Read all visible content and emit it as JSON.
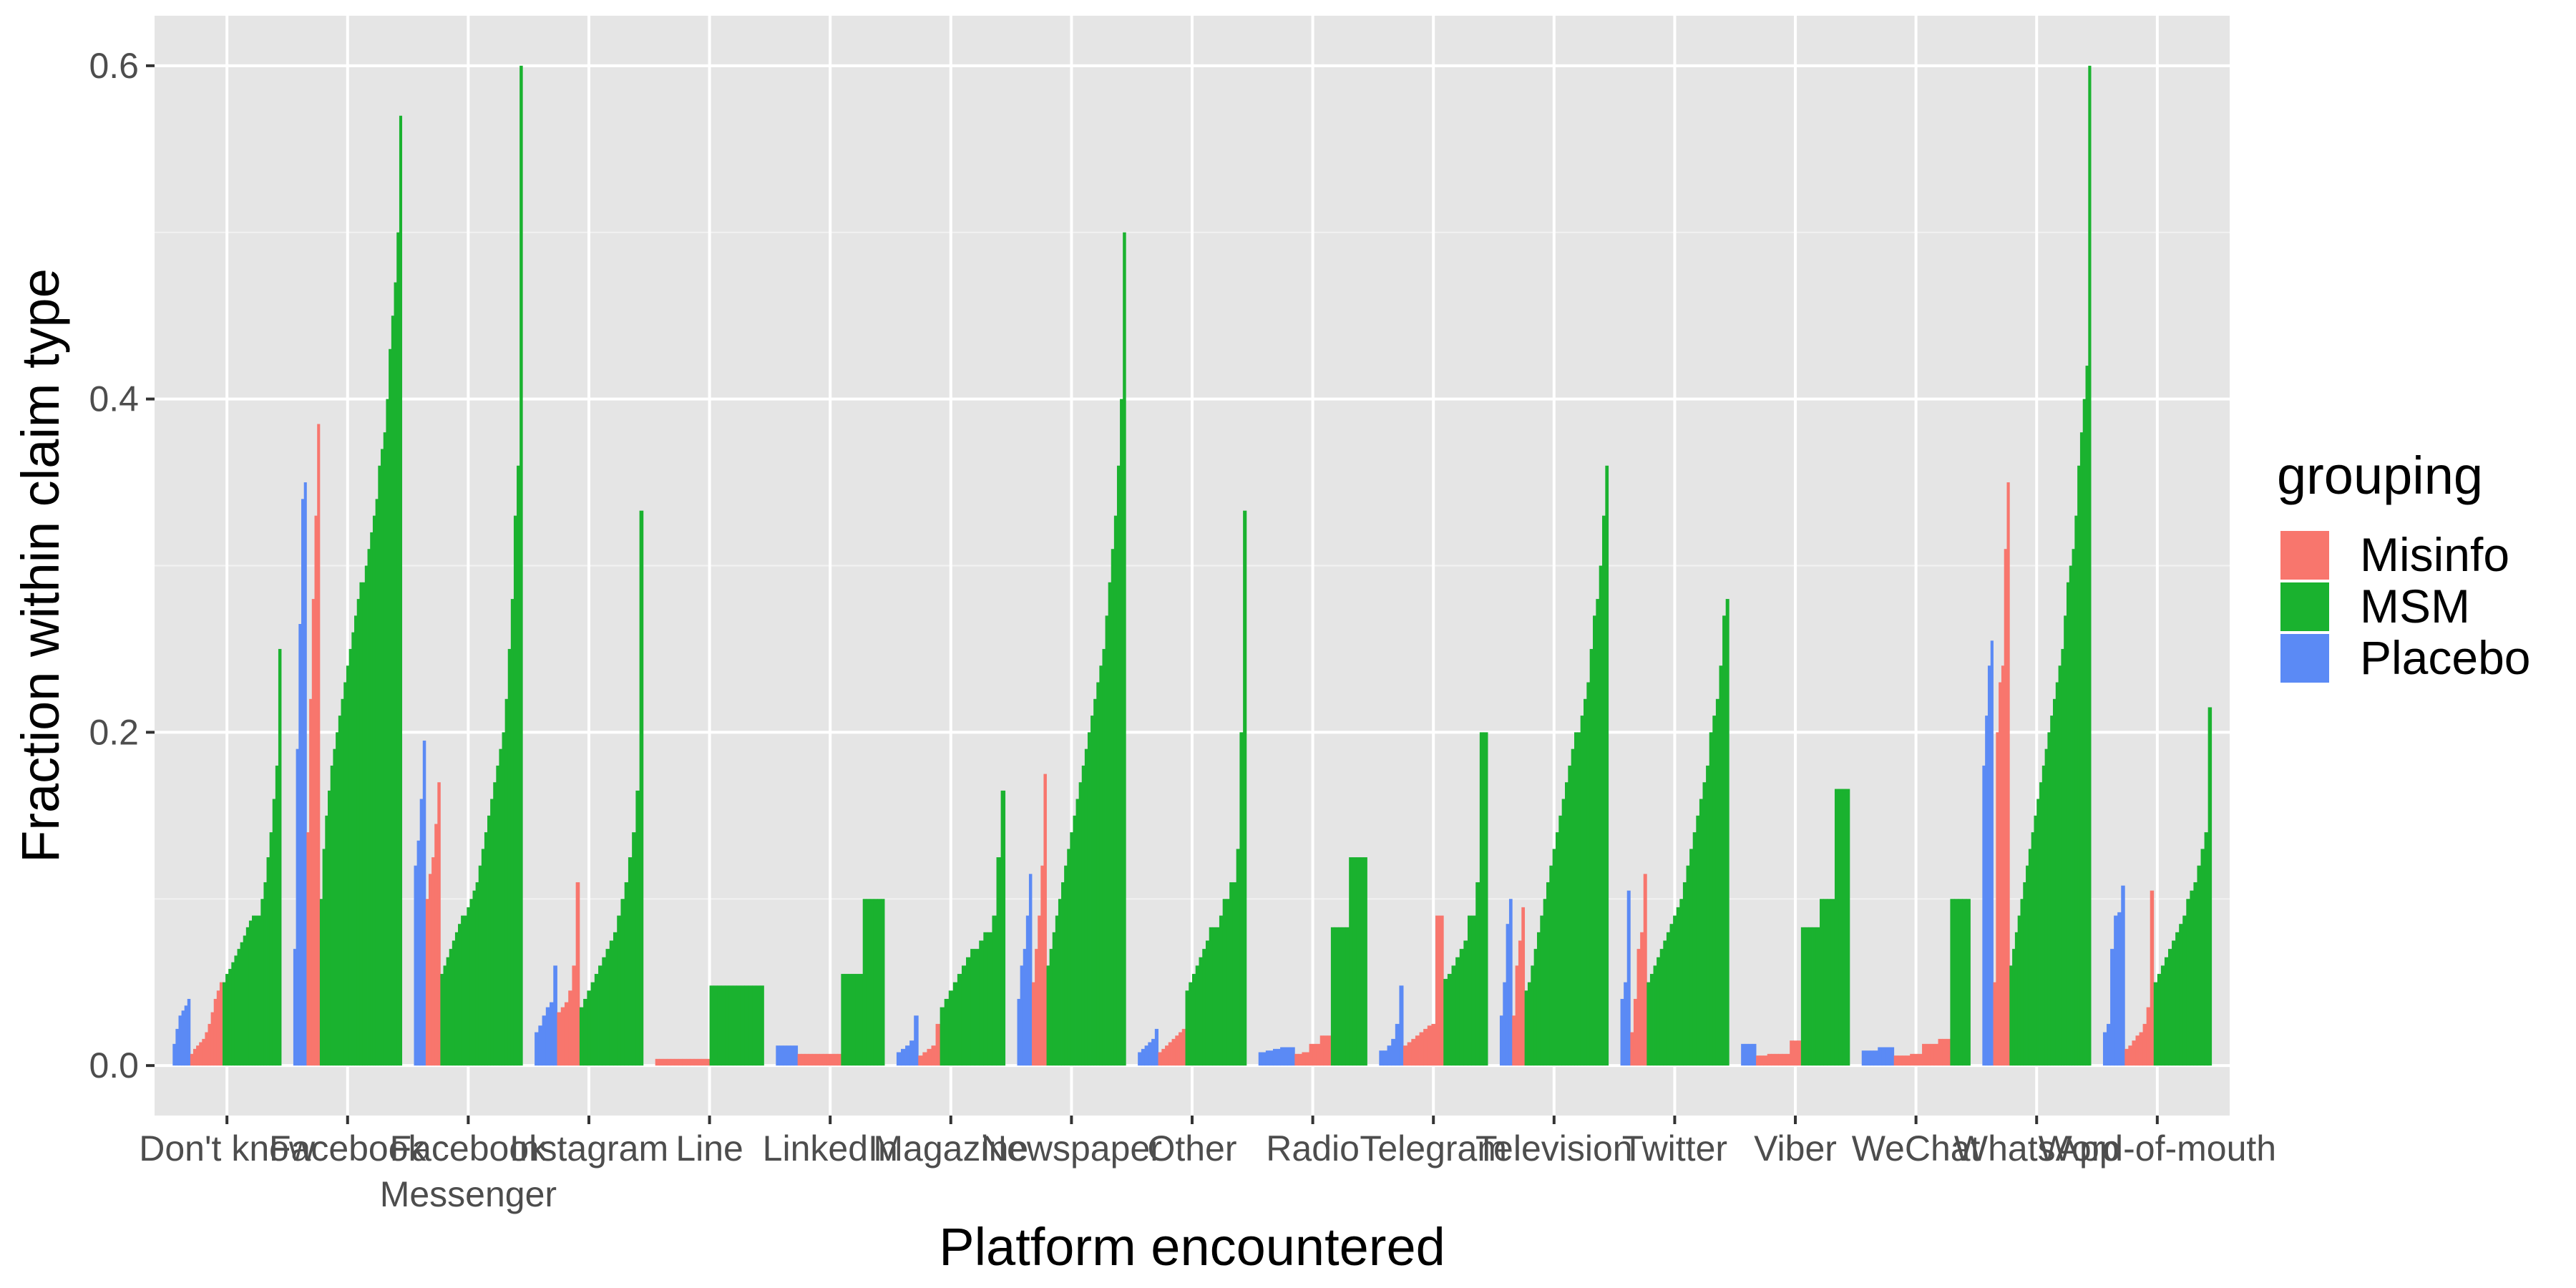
{
  "chart_data": {
    "type": "bar",
    "xlabel": "Platform encountered",
    "ylabel": "Fraction within claim type",
    "ylim": [
      -0.03,
      0.63
    ],
    "yticks": [
      0.0,
      0.2,
      0.4,
      0.6
    ],
    "ytick_labels": [
      "0.0",
      "0.2",
      "0.4",
      "0.6"
    ],
    "grid": true,
    "legend": {
      "title": "grouping",
      "placement": "right",
      "items": [
        {
          "name": "Misinfo",
          "color": "#F8766D"
        },
        {
          "name": "MSM",
          "color": "#1AB22F"
        },
        {
          "name": "Placebo",
          "color": "#5B8AF5"
        }
      ]
    },
    "categories": [
      {
        "label": [
          "Don't know"
        ],
        "groups": [
          {
            "name": "Placebo",
            "values": [
              0.013,
              0.022,
              0.03,
              0.033,
              0.036,
              0.04
            ]
          },
          {
            "name": "Misinfo",
            "values": [
              0.007,
              0.01,
              0.012,
              0.014,
              0.016,
              0.02,
              0.025,
              0.032,
              0.04,
              0.045,
              0.05
            ]
          },
          {
            "name": "MSM",
            "values": [
              0.05,
              0.055,
              0.058,
              0.062,
              0.066,
              0.07,
              0.074,
              0.078,
              0.083,
              0.087,
              0.09,
              0.09,
              0.09,
              0.1,
              0.11,
              0.125,
              0.14,
              0.16,
              0.18,
              0.25
            ]
          }
        ]
      },
      {
        "label": [
          "Facebook"
        ],
        "groups": [
          {
            "name": "Placebo",
            "values": [
              0.07,
              0.19,
              0.265,
              0.34,
              0.35
            ]
          },
          {
            "name": "Misinfo",
            "values": [
              0.14,
              0.22,
              0.28,
              0.33,
              0.385
            ]
          },
          {
            "name": "MSM",
            "values": [
              0.1,
              0.13,
              0.15,
              0.165,
              0.18,
              0.19,
              0.2,
              0.21,
              0.22,
              0.23,
              0.24,
              0.25,
              0.26,
              0.27,
              0.28,
              0.29,
              0.29,
              0.3,
              0.31,
              0.32,
              0.33,
              0.34,
              0.36,
              0.37,
              0.38,
              0.4,
              0.43,
              0.45,
              0.47,
              0.5,
              0.57
            ]
          }
        ]
      },
      {
        "label": [
          "Facebook",
          "Messenger"
        ],
        "groups": [
          {
            "name": "Placebo",
            "values": [
              0.12,
              0.135,
              0.16,
              0.195
            ]
          },
          {
            "name": "Misinfo",
            "values": [
              0.1,
              0.115,
              0.125,
              0.145,
              0.17
            ]
          },
          {
            "name": "MSM",
            "values": [
              0.055,
              0.06,
              0.065,
              0.07,
              0.075,
              0.08,
              0.085,
              0.09,
              0.09,
              0.095,
              0.1,
              0.105,
              0.11,
              0.12,
              0.13,
              0.14,
              0.15,
              0.16,
              0.17,
              0.18,
              0.19,
              0.2,
              0.22,
              0.25,
              0.28,
              0.33,
              0.36,
              0.6
            ]
          }
        ]
      },
      {
        "label": [
          "Instagram"
        ],
        "groups": [
          {
            "name": "Placebo",
            "values": [
              0.02,
              0.024,
              0.03,
              0.035,
              0.038,
              0.06
            ]
          },
          {
            "name": "Misinfo",
            "values": [
              0.032,
              0.035,
              0.038,
              0.045,
              0.06,
              0.11
            ]
          },
          {
            "name": "MSM",
            "values": [
              0.035,
              0.04,
              0.045,
              0.05,
              0.055,
              0.06,
              0.065,
              0.07,
              0.075,
              0.08,
              0.09,
              0.1,
              0.11,
              0.125,
              0.14,
              0.165,
              0.333
            ]
          }
        ]
      },
      {
        "label": [
          "Line"
        ],
        "groups": [
          {
            "name": "Misinfo",
            "values": [
              0.004,
              0.004,
              0.004,
              0.004,
              0.004,
              0.004,
              0.004,
              0.004,
              0.004,
              0.004,
              0.004,
              0.004,
              0.004,
              0.004
            ]
          },
          {
            "name": "MSM",
            "values": [
              0.048,
              0.048,
              0.048,
              0.048,
              0.048,
              0.048,
              0.048,
              0.048,
              0.048,
              0.048,
              0.048,
              0.048,
              0.048,
              0.048
            ]
          }
        ]
      },
      {
        "label": [
          "LinkedIn"
        ],
        "groups": [
          {
            "name": "Placebo",
            "values": [
              0.012,
              0.012,
              0.012,
              0.012,
              0.012,
              0.012
            ]
          },
          {
            "name": "Misinfo",
            "values": [
              0.007,
              0.007,
              0.007,
              0.007,
              0.007,
              0.007,
              0.007,
              0.007,
              0.007,
              0.007,
              0.007,
              0.007
            ]
          },
          {
            "name": "MSM",
            "values": [
              0.055,
              0.055,
              0.055,
              0.055,
              0.055,
              0.055,
              0.1,
              0.1,
              0.1,
              0.1,
              0.1,
              0.1
            ]
          }
        ]
      },
      {
        "label": [
          "Magazine"
        ],
        "groups": [
          {
            "name": "Placebo",
            "values": [
              0.008,
              0.01,
              0.012,
              0.015,
              0.03
            ]
          },
          {
            "name": "Misinfo",
            "values": [
              0.006,
              0.008,
              0.01,
              0.012,
              0.025
            ]
          },
          {
            "name": "MSM",
            "values": [
              0.035,
              0.04,
              0.045,
              0.05,
              0.055,
              0.06,
              0.065,
              0.07,
              0.07,
              0.075,
              0.08,
              0.08,
              0.09,
              0.125,
              0.165
            ]
          }
        ]
      },
      {
        "label": [
          "Newspaper"
        ],
        "groups": [
          {
            "name": "Placebo",
            "values": [
              0.04,
              0.06,
              0.07,
              0.09,
              0.115
            ]
          },
          {
            "name": "Misinfo",
            "values": [
              0.05,
              0.07,
              0.09,
              0.12,
              0.175
            ]
          },
          {
            "name": "MSM",
            "values": [
              0.06,
              0.07,
              0.08,
              0.09,
              0.1,
              0.11,
              0.12,
              0.13,
              0.14,
              0.15,
              0.16,
              0.17,
              0.18,
              0.19,
              0.2,
              0.21,
              0.22,
              0.23,
              0.24,
              0.25,
              0.27,
              0.29,
              0.31,
              0.33,
              0.36,
              0.4,
              0.5
            ]
          }
        ]
      },
      {
        "label": [
          "Other"
        ],
        "groups": [
          {
            "name": "Placebo",
            "values": [
              0.008,
              0.01,
              0.012,
              0.014,
              0.016,
              0.022
            ]
          },
          {
            "name": "Misinfo",
            "values": [
              0.008,
              0.01,
              0.012,
              0.014,
              0.016,
              0.018,
              0.02,
              0.022
            ]
          },
          {
            "name": "MSM",
            "values": [
              0.045,
              0.05,
              0.055,
              0.06,
              0.065,
              0.07,
              0.075,
              0.083,
              0.083,
              0.083,
              0.09,
              0.1,
              0.1,
              0.11,
              0.11,
              0.13,
              0.2,
              0.333
            ]
          }
        ]
      },
      {
        "label": [
          "Radio"
        ],
        "groups": [
          {
            "name": "Placebo",
            "values": [
              0.008,
              0.008,
              0.009,
              0.009,
              0.01,
              0.01,
              0.011,
              0.011,
              0.011,
              0.011
            ]
          },
          {
            "name": "Misinfo",
            "values": [
              0.007,
              0.007,
              0.008,
              0.008,
              0.013,
              0.013,
              0.013,
              0.018,
              0.018,
              0.018
            ]
          },
          {
            "name": "MSM",
            "values": [
              0.083,
              0.083,
              0.083,
              0.083,
              0.083,
              0.125,
              0.125,
              0.125,
              0.125,
              0.125
            ]
          }
        ]
      },
      {
        "label": [
          "Telegram"
        ],
        "groups": [
          {
            "name": "Placebo",
            "values": [
              0.009,
              0.009,
              0.012,
              0.016,
              0.025,
              0.048
            ]
          },
          {
            "name": "Misinfo",
            "values": [
              0.012,
              0.014,
              0.016,
              0.018,
              0.02,
              0.022,
              0.024,
              0.025,
              0.09,
              0.09
            ]
          },
          {
            "name": "MSM",
            "values": [
              0.052,
              0.055,
              0.06,
              0.065,
              0.07,
              0.075,
              0.09,
              0.09,
              0.11,
              0.2,
              0.2
            ]
          }
        ]
      },
      {
        "label": [
          "Television"
        ],
        "groups": [
          {
            "name": "Placebo",
            "values": [
              0.03,
              0.05,
              0.085,
              0.1
            ]
          },
          {
            "name": "Misinfo",
            "values": [
              0.03,
              0.06,
              0.075,
              0.095
            ]
          },
          {
            "name": "MSM",
            "values": [
              0.045,
              0.05,
              0.06,
              0.07,
              0.08,
              0.09,
              0.1,
              0.11,
              0.12,
              0.13,
              0.14,
              0.15,
              0.16,
              0.17,
              0.18,
              0.19,
              0.2,
              0.2,
              0.21,
              0.22,
              0.23,
              0.25,
              0.27,
              0.28,
              0.3,
              0.33,
              0.36
            ]
          }
        ]
      },
      {
        "label": [
          "Twitter"
        ],
        "groups": [
          {
            "name": "Placebo",
            "values": [
              0.04,
              0.05,
              0.105
            ]
          },
          {
            "name": "Misinfo",
            "values": [
              0.02,
              0.04,
              0.07,
              0.08,
              0.115
            ]
          },
          {
            "name": "MSM",
            "values": [
              0.05,
              0.055,
              0.06,
              0.065,
              0.07,
              0.075,
              0.08,
              0.085,
              0.09,
              0.095,
              0.1,
              0.11,
              0.12,
              0.13,
              0.14,
              0.15,
              0.16,
              0.17,
              0.18,
              0.2,
              0.21,
              0.22,
              0.24,
              0.27,
              0.28
            ]
          }
        ]
      },
      {
        "label": [
          "Viber"
        ],
        "groups": [
          {
            "name": "Placebo",
            "values": [
              0.013,
              0.013,
              0.013,
              0.013
            ]
          },
          {
            "name": "Misinfo",
            "values": [
              0.006,
              0.006,
              0.006,
              0.007,
              0.007,
              0.007,
              0.007,
              0.007,
              0.007,
              0.015,
              0.015,
              0.015
            ]
          },
          {
            "name": "MSM",
            "values": [
              0.083,
              0.083,
              0.083,
              0.083,
              0.083,
              0.1,
              0.1,
              0.1,
              0.1,
              0.166,
              0.166,
              0.166,
              0.166
            ]
          }
        ]
      },
      {
        "label": [
          "WeChat"
        ],
        "groups": [
          {
            "name": "Placebo",
            "values": [
              0.009,
              0.009,
              0.009,
              0.009,
              0.011,
              0.011,
              0.011,
              0.011
            ]
          },
          {
            "name": "Misinfo",
            "values": [
              0.006,
              0.006,
              0.006,
              0.006,
              0.007,
              0.007,
              0.007,
              0.013,
              0.013,
              0.013,
              0.013,
              0.016,
              0.016,
              0.016
            ]
          },
          {
            "name": "MSM",
            "values": [
              0.1,
              0.1,
              0.1,
              0.1,
              0.1
            ]
          }
        ]
      },
      {
        "label": [
          "WhatsApp"
        ],
        "groups": [
          {
            "name": "Placebo",
            "values": [
              0.18,
              0.21,
              0.24,
              0.255
            ]
          },
          {
            "name": "Misinfo",
            "values": [
              0.05,
              0.2,
              0.23,
              0.24,
              0.31,
              0.35
            ]
          },
          {
            "name": "MSM",
            "values": [
              0.06,
              0.07,
              0.08,
              0.09,
              0.1,
              0.11,
              0.12,
              0.13,
              0.14,
              0.15,
              0.16,
              0.17,
              0.18,
              0.19,
              0.2,
              0.21,
              0.22,
              0.23,
              0.24,
              0.25,
              0.27,
              0.29,
              0.3,
              0.31,
              0.33,
              0.36,
              0.38,
              0.4,
              0.42,
              0.6
            ]
          }
        ]
      },
      {
        "label": [
          "Word-of-mouth"
        ],
        "groups": [
          {
            "name": "Placebo",
            "values": [
              0.02,
              0.025,
              0.07,
              0.09,
              0.092,
              0.108
            ]
          },
          {
            "name": "Misinfo",
            "values": [
              0.01,
              0.012,
              0.015,
              0.018,
              0.02,
              0.025,
              0.035,
              0.105
            ]
          },
          {
            "name": "MSM",
            "values": [
              0.05,
              0.055,
              0.06,
              0.065,
              0.07,
              0.075,
              0.08,
              0.085,
              0.09,
              0.1,
              0.105,
              0.11,
              0.12,
              0.13,
              0.14,
              0.215
            ]
          }
        ]
      }
    ]
  }
}
